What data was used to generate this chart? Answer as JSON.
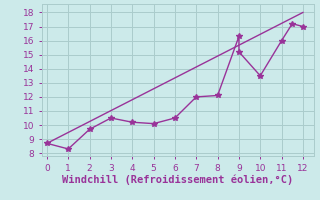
{
  "xlabel": "Windchill (Refroidissement éolien,°C)",
  "x_data": [
    0,
    1,
    2,
    3,
    4,
    5,
    6,
    7,
    8,
    9,
    9,
    10,
    11,
    11.5,
    12
  ],
  "y_data": [
    8.7,
    8.3,
    9.7,
    10.5,
    10.2,
    10.1,
    10.5,
    12.0,
    12.1,
    16.3,
    15.2,
    13.5,
    16.0,
    17.2,
    17.0
  ],
  "trend_x": [
    0,
    12
  ],
  "trend_y": [
    8.7,
    18.0
  ],
  "line_color": "#993399",
  "bg_color": "#cceaea",
  "grid_color": "#aacccc",
  "text_color": "#993399",
  "xlim": [
    -0.25,
    12.5
  ],
  "ylim": [
    7.8,
    18.6
  ],
  "xticks": [
    0,
    1,
    2,
    3,
    4,
    5,
    6,
    7,
    8,
    9,
    10,
    11,
    12
  ],
  "yticks": [
    8,
    9,
    10,
    11,
    12,
    13,
    14,
    15,
    16,
    17,
    18
  ],
  "marker": "*",
  "marker_size": 4,
  "line_width": 1.0,
  "xlabel_fontsize": 7.5,
  "tick_fontsize": 6.5
}
